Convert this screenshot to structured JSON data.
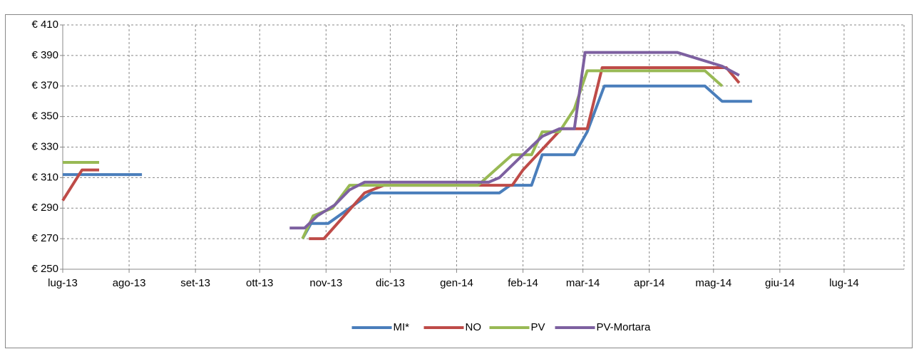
{
  "chart_data": {
    "type": "line",
    "xlim": [
      0,
      393
    ],
    "xticks": [
      {
        "value": 0,
        "label": "lug-13"
      },
      {
        "value": 31,
        "label": "ago-13"
      },
      {
        "value": 62,
        "label": "set-13"
      },
      {
        "value": 92,
        "label": "ott-13"
      },
      {
        "value": 123,
        "label": "nov-13"
      },
      {
        "value": 153,
        "label": "dic-13"
      },
      {
        "value": 184,
        "label": "gen-14"
      },
      {
        "value": 215,
        "label": "feb-14"
      },
      {
        "value": 243,
        "label": "mar-14"
      },
      {
        "value": 274,
        "label": "apr-14"
      },
      {
        "value": 304,
        "label": "mag-14"
      },
      {
        "value": 335,
        "label": "giu-14"
      },
      {
        "value": 365,
        "label": "lug-14"
      }
    ],
    "ylim": [
      250,
      410
    ],
    "yticks": [
      {
        "value": 250,
        "label": "€ 250"
      },
      {
        "value": 270,
        "label": "€ 270"
      },
      {
        "value": 290,
        "label": "€ 290"
      },
      {
        "value": 310,
        "label": "€ 310"
      },
      {
        "value": 330,
        "label": "€ 330"
      },
      {
        "value": 350,
        "label": "€ 350"
      },
      {
        "value": 370,
        "label": "€ 370"
      },
      {
        "value": 390,
        "label": "€ 390"
      },
      {
        "value": 410,
        "label": "€ 410"
      }
    ],
    "grid": true,
    "legend": "bottom",
    "series": [
      {
        "name": "MI*",
        "color": "#4a7ebb",
        "x": [
          0,
          37,
          80,
          112,
          116,
          124,
          144,
          204,
          209,
          219,
          224,
          239,
          245,
          253,
          300,
          308,
          322
        ],
        "values": [
          312,
          312,
          null,
          270,
          280,
          280,
          300,
          300,
          305,
          305,
          325,
          325,
          340,
          370,
          370,
          360,
          360
        ]
      },
      {
        "name": "NO",
        "color": "#be4b48",
        "x": [
          0,
          9,
          17,
          80,
          115,
          122,
          141,
          150,
          210,
          215,
          225,
          233,
          245,
          252,
          310,
          316
        ],
        "values": [
          295,
          315,
          315,
          null,
          270,
          270,
          300,
          305,
          305,
          315,
          330,
          342,
          342,
          382,
          382,
          372
        ]
      },
      {
        "name": "PV",
        "color": "#98b954",
        "x": [
          0,
          17,
          80,
          112,
          117,
          126,
          134,
          152,
          194,
          210,
          219,
          224,
          232,
          239,
          245,
          300,
          308
        ],
        "values": [
          320,
          320,
          null,
          270,
          285,
          290,
          305,
          305,
          305,
          325,
          325,
          340,
          340,
          355,
          380,
          380,
          370
        ]
      },
      {
        "name": "PV-Mortara",
        "color": "#7d60a0",
        "x": [
          106,
          113,
          119,
          127,
          134,
          141,
          199,
          204,
          215,
          224,
          232,
          239,
          244,
          287,
          308,
          316
        ],
        "values": [
          277,
          277,
          285,
          292,
          302,
          307,
          307,
          310,
          325,
          337,
          342,
          342,
          392,
          392,
          383,
          377
        ]
      }
    ]
  }
}
